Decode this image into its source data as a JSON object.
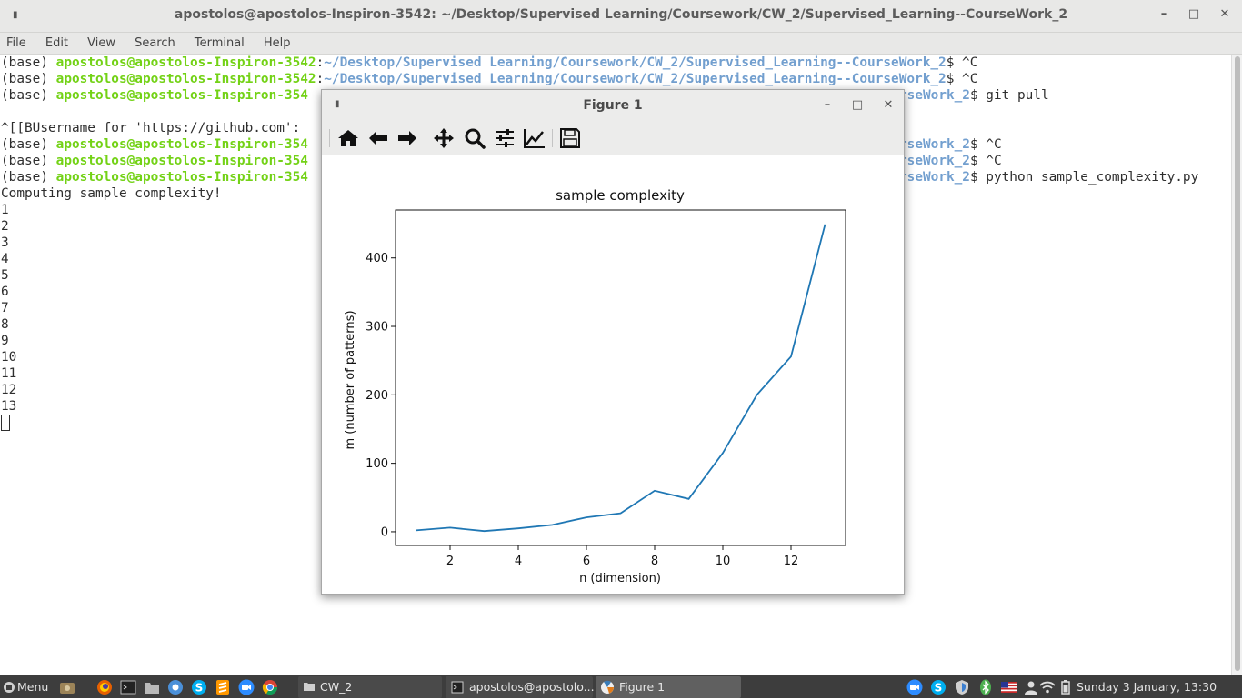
{
  "terminal": {
    "title": "apostolos@apostolos-Inspiron-3542: ~/Desktop/Supervised Learning/Coursework/CW_2/Supervised_Learning--CourseWork_2",
    "menu": [
      "File",
      "Edit",
      "View",
      "Search",
      "Terminal",
      "Help"
    ],
    "prompt_env": "(base) ",
    "user_host": "apostolos@apostolos-Inspiron-3542",
    "user_host_truncated": "apostolos@apostolos-Inspiron-354",
    "path": "~/Desktop/Supervised Learning/Coursework/CW_2/Supervised_Learning--CourseWork_2",
    "path_tail": "rseWork_2",
    "lines": {
      "l1_cmd": "$ ^C",
      "l2_cmd": "$ ^C",
      "l3_cmd": "$ git pull",
      "l4_text": "^[[BUsername for 'https://github.com': ",
      "l5_cmd": "$ ^C",
      "l6_cmd": "$ ^C",
      "l7_cmd": "$ python sample_complexity.py",
      "l8_text": "Computing sample complexity!"
    },
    "output_numbers": [
      "1",
      "2",
      "3",
      "4",
      "5",
      "6",
      "7",
      "8",
      "9",
      "10",
      "11",
      "12",
      "13"
    ]
  },
  "figure": {
    "title": "Figure 1",
    "toolbar": [
      "home-icon",
      "back-arrow-icon",
      "forward-arrow-icon",
      "pan-move-icon",
      "zoom-magnifier-icon",
      "subplots-config-icon",
      "edit-axis-curves-icon",
      "save-floppy-icon"
    ]
  },
  "chart_data": {
    "type": "line",
    "title": "sample complexity",
    "xlabel": "n (dimension)",
    "ylabel": "m (number of patterns)",
    "x": [
      1,
      2,
      3,
      4,
      5,
      6,
      7,
      8,
      9,
      10,
      11,
      12,
      13
    ],
    "series": [
      {
        "values": [
          2,
          6,
          1,
          5,
          10,
          21,
          27,
          60,
          48,
          115,
          200,
          256,
          449
        ],
        "color": "#1f77b4"
      }
    ],
    "xlim": [
      0.4,
      13.6
    ],
    "ylim": [
      -20,
      470
    ],
    "xticks": [
      2,
      4,
      6,
      8,
      10,
      12
    ],
    "yticks": [
      0,
      100,
      200,
      300,
      400
    ],
    "grid": false
  },
  "taskbar": {
    "menu_label": "Menu",
    "tasks": [
      {
        "label": "CW_2"
      },
      {
        "label": "apostolos@apostolo..."
      },
      {
        "label": "Figure 1"
      }
    ],
    "clock": "Sunday  3 January, 13:30"
  }
}
